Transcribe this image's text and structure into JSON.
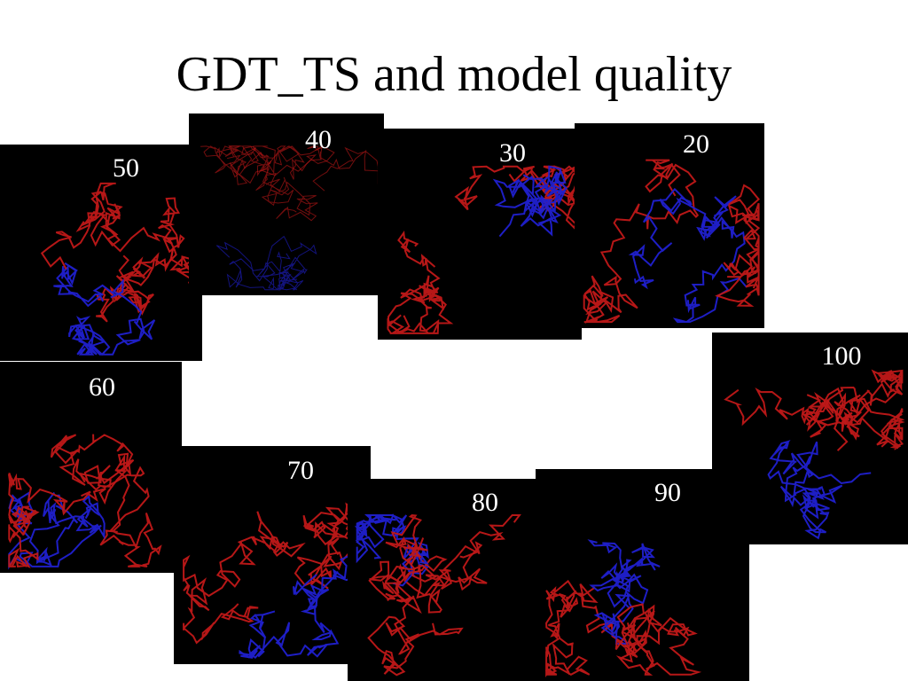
{
  "title": "GDT_TS and model quality",
  "panels": [
    {
      "label": "50"
    },
    {
      "label": "40"
    },
    {
      "label": "30"
    },
    {
      "label": "20"
    },
    {
      "label": "60"
    },
    {
      "label": "70"
    },
    {
      "label": "80"
    },
    {
      "label": "90"
    },
    {
      "label": "100"
    }
  ]
}
